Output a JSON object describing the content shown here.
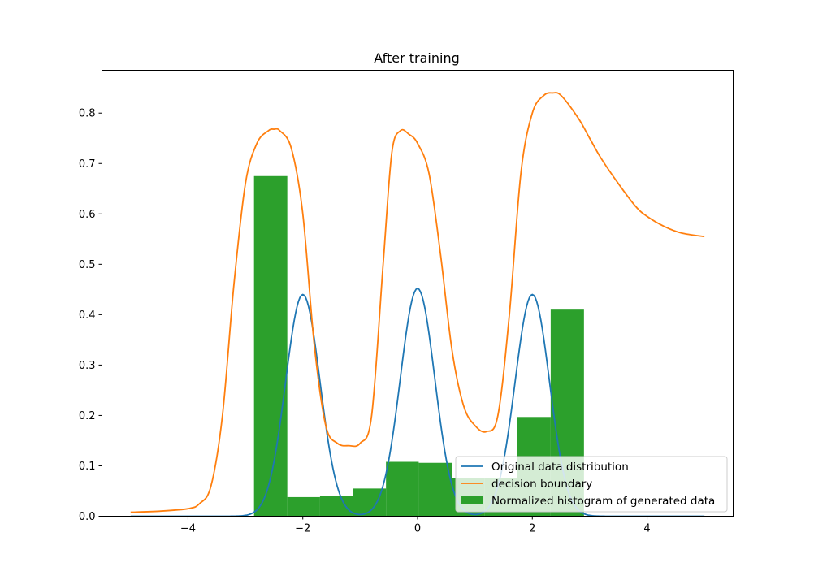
{
  "chart_data": {
    "type": "line",
    "title": "After training",
    "xlabel": "",
    "ylabel": "",
    "xlim": [
      -5.5,
      5.5
    ],
    "ylim": [
      0,
      0.885
    ],
    "xticks": [
      -4,
      -2,
      0,
      2,
      4
    ],
    "yticks": [
      0.0,
      0.1,
      0.2,
      0.3,
      0.4,
      0.5,
      0.6,
      0.7,
      0.8
    ],
    "legend_position": "lower-right",
    "colors": {
      "original": "#1f77b4",
      "decision": "#ff7f0e",
      "histogram": "#2ca02c"
    },
    "legend": [
      "Original data distribution",
      "decision boundary",
      "Normalized histogram of generated data"
    ],
    "series": [
      {
        "name": "Original data distribution",
        "type": "line",
        "components": [
          {
            "mu": -2,
            "sigma": 0.3
          },
          {
            "mu": 0,
            "sigma": 0.3
          },
          {
            "mu": 2,
            "sigma": 0.3
          }
        ],
        "x_range": [
          -5,
          5
        ],
        "peak_values": [
          0.44,
          0.452,
          0.44
        ]
      },
      {
        "name": "decision boundary",
        "type": "line",
        "x": [
          -5.0,
          -4.5,
          -4.0,
          -3.8,
          -3.6,
          -3.4,
          -3.2,
          -3.0,
          -2.8,
          -2.6,
          -2.5,
          -2.4,
          -2.2,
          -2.0,
          -1.8,
          -1.6,
          -1.4,
          -1.2,
          -1.0,
          -0.8,
          -0.6,
          -0.45,
          -0.3,
          -0.15,
          0.0,
          0.2,
          0.4,
          0.6,
          0.8,
          1.0,
          1.2,
          1.4,
          1.6,
          1.8,
          2.0,
          2.2,
          2.35,
          2.5,
          2.8,
          3.0,
          3.2,
          3.5,
          3.8,
          4.0,
          4.3,
          4.6,
          5.0
        ],
        "y": [
          0.008,
          0.01,
          0.015,
          0.025,
          0.06,
          0.2,
          0.46,
          0.66,
          0.74,
          0.765,
          0.768,
          0.765,
          0.73,
          0.6,
          0.34,
          0.18,
          0.145,
          0.14,
          0.145,
          0.2,
          0.5,
          0.72,
          0.765,
          0.758,
          0.74,
          0.68,
          0.52,
          0.33,
          0.22,
          0.18,
          0.168,
          0.2,
          0.4,
          0.68,
          0.8,
          0.835,
          0.84,
          0.835,
          0.79,
          0.75,
          0.71,
          0.66,
          0.615,
          0.595,
          0.575,
          0.562,
          0.555
        ]
      },
      {
        "name": "Normalized histogram of generated data",
        "type": "histogram",
        "bins": [
          {
            "left": -2.85,
            "right": -2.27,
            "value": 0.675
          },
          {
            "left": -2.27,
            "right": -1.7,
            "value": 0.038
          },
          {
            "left": -1.7,
            "right": -1.13,
            "value": 0.04
          },
          {
            "left": -1.13,
            "right": -0.55,
            "value": 0.055
          },
          {
            "left": -0.55,
            "right": 0.02,
            "value": 0.108
          },
          {
            "left": 0.02,
            "right": 0.6,
            "value": 0.106
          },
          {
            "left": 0.6,
            "right": 1.17,
            "value": 0.075
          },
          {
            "left": 1.17,
            "right": 1.74,
            "value": 0.075
          },
          {
            "left": 1.74,
            "right": 2.32,
            "value": 0.197
          },
          {
            "left": 2.32,
            "right": 2.9,
            "value": 0.41
          }
        ]
      }
    ]
  }
}
